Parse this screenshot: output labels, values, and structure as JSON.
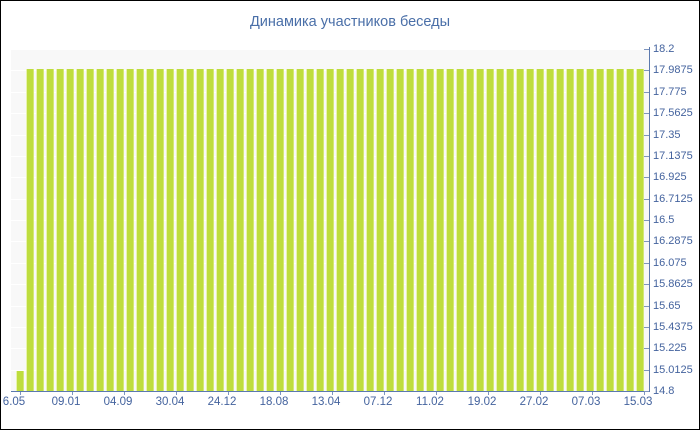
{
  "window": {
    "title": "Динамика участников беседы"
  },
  "colors": {
    "bar_fill": "#bedd3e",
    "bar_edge_light": "#e8f3ae",
    "bar_edge_shadow": "#d3e877",
    "plot_background": "#f8f8f8",
    "figure_background": "#ffffff",
    "axis_line": "#5b79ae",
    "tick_mark": "#7e95bf",
    "label_text": "#44639e",
    "title_text": "#4a6fa8",
    "image_border": "#000000"
  },
  "chart_data": {
    "type": "bar",
    "title": "Динамика участников беседы",
    "xlabel": "",
    "ylabel": "",
    "ylim": [
      14.8,
      18.2
    ],
    "baseline_value": 14.8,
    "y_axis_side": "right",
    "grid": "faint white horizontal lines at each y tick",
    "legend_position": "none",
    "bar_count": 63,
    "values": [
      15,
      18,
      18,
      18,
      18,
      18,
      18,
      18,
      18,
      18,
      18,
      18,
      18,
      18,
      18,
      18,
      18,
      18,
      18,
      18,
      18,
      18,
      18,
      18,
      18,
      18,
      18,
      18,
      18,
      18,
      18,
      18,
      18,
      18,
      18,
      18,
      18,
      18,
      18,
      18,
      18,
      18,
      18,
      18,
      18,
      18,
      18,
      18,
      18,
      18,
      18,
      18,
      18,
      18,
      18,
      18,
      18,
      18,
      18,
      18,
      18,
      18,
      18
    ],
    "y_tick_labels": [
      "18.2",
      "17.9875",
      "17.775",
      "17.5625",
      "17.35",
      "17.1375",
      "16.925",
      "16.7125",
      "16.5",
      "16.2875",
      "16.075",
      "15.8625",
      "15.65",
      "15.4375",
      "15.225",
      "15.0125",
      "14.8"
    ],
    "x_tick_labels": [
      "6.05",
      "09.01",
      "04.09",
      "30.04",
      "24.12",
      "18.08",
      "13.04",
      "07.12",
      "11.02",
      "19.02",
      "27.02",
      "07.03",
      "15.03"
    ]
  }
}
